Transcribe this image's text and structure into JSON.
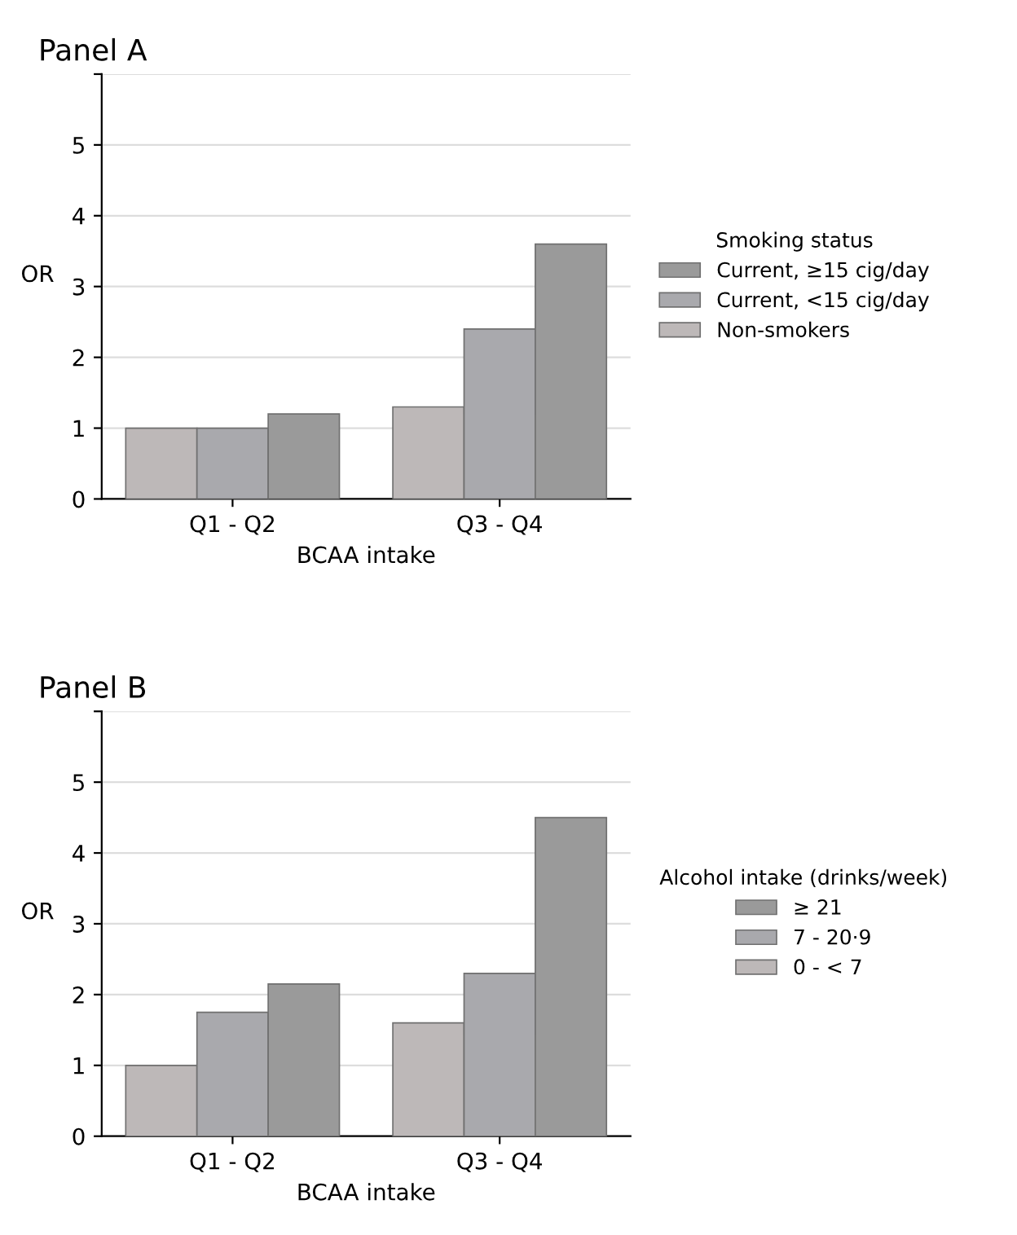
{
  "chart_data": [
    {
      "type": "bar",
      "title": "Panel A",
      "xlabel": "BCAA intake",
      "ylabel": "OR",
      "legend_title": "Smoking status",
      "categories": [
        "Q1 - Q2",
        "Q3 - Q4"
      ],
      "ylim": [
        0,
        6
      ],
      "yticks": [
        0,
        1,
        2,
        3,
        4,
        5,
        {
          "value": 6,
          "label": null
        }
      ],
      "grid": "y",
      "legend": "right",
      "series": [
        {
          "name": "Non-smokers",
          "color": "#bdb8b8",
          "values": [
            1.0,
            1.3
          ]
        },
        {
          "name": "Current, <15 cig/day",
          "color": "#a9a9ad",
          "values": [
            1.0,
            2.4
          ]
        },
        {
          "name": "Current, ≥15 cig/day",
          "color": "#9a9a9a",
          "values": [
            1.2,
            3.6
          ]
        }
      ]
    },
    {
      "type": "bar",
      "title": "Panel B",
      "xlabel": "BCAA intake",
      "ylabel": "OR",
      "legend_title": "Alcohol intake (drinks/week)",
      "categories": [
        "Q1 - Q2",
        "Q3 - Q4"
      ],
      "ylim": [
        0,
        6
      ],
      "yticks": [
        0,
        1,
        2,
        3,
        4,
        5,
        {
          "value": 6,
          "label": null
        }
      ],
      "grid": "y",
      "legend": "right",
      "series": [
        {
          "name": "0 - < 7",
          "color": "#bdb8b8",
          "values": [
            1.0,
            1.6
          ]
        },
        {
          "name": "7 - 20·9",
          "color": "#a9a9ad",
          "values": [
            1.75,
            2.3
          ]
        },
        {
          "name": "≥ 21",
          "color": "#9a9a9a",
          "values": [
            2.15,
            4.5
          ]
        }
      ]
    }
  ]
}
